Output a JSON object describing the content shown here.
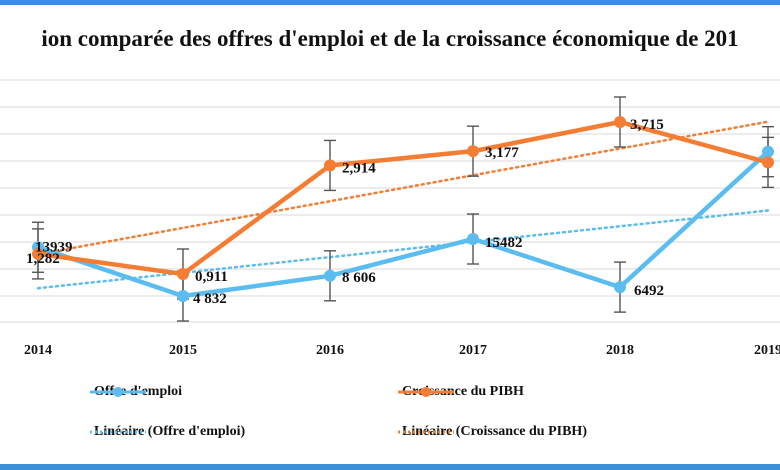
{
  "title": "ion comparée des offres d'emploi et de la croissance économique de 201",
  "chart_data": {
    "type": "line",
    "categories": [
      "2014",
      "2015",
      "2016",
      "2017",
      "2018",
      "2019"
    ],
    "series": [
      {
        "name": "Offre d'emploi",
        "color": "#5bbcf0",
        "values": [
          13939,
          4832,
          8606,
          15482,
          6492,
          31800
        ],
        "labels": [
          "13939",
          "4 832",
          "8 606",
          "15482",
          "6492",
          ""
        ]
      },
      {
        "name": "Croissance du PIBH",
        "color": "#f47c33",
        "values": [
          1.282,
          0.911,
          2.914,
          3.177,
          3.715,
          2.97
        ],
        "labels": [
          "1,282",
          "0,911",
          "2,914",
          "3,177",
          "3,715",
          ""
        ]
      }
    ],
    "trendlines": [
      {
        "name": "Linéaire (Offre d'emploi)",
        "color": "#5bbcf0",
        "style": "dotted",
        "of": "Offre d'emploi"
      },
      {
        "name": "Linéaire (Croissance du PIBH)",
        "color": "#f47c33",
        "style": "dotted",
        "of": "Croissance du PIBH"
      }
    ],
    "error_bars": true,
    "grid": true,
    "legend_position": "bottom"
  }
}
